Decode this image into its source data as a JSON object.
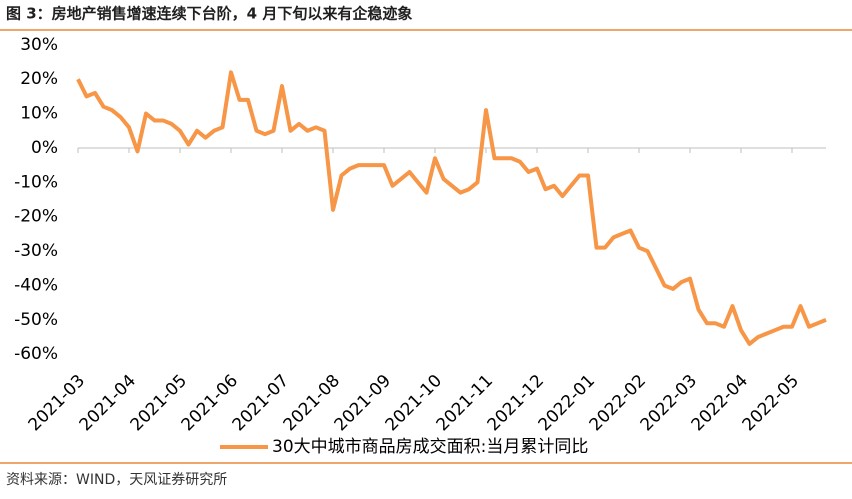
{
  "chart_data": {
    "type": "line",
    "title": "图 3：房地产销售增速连续下台阶，4 月下旬以来有企稳迹象",
    "source": "资料来源：WIND，天风证券研究所",
    "categories": [
      "2021-03",
      null,
      null,
      null,
      null,
      null,
      "2021-04",
      null,
      null,
      null,
      null,
      null,
      "2021-05",
      null,
      null,
      null,
      null,
      null,
      "2021-06",
      null,
      null,
      null,
      null,
      null,
      "2021-07",
      null,
      null,
      null,
      null,
      null,
      "2021-08",
      null,
      null,
      null,
      null,
      null,
      "2021-09",
      null,
      null,
      null,
      null,
      null,
      "2021-10",
      null,
      null,
      null,
      null,
      null,
      "2021-11",
      null,
      null,
      null,
      null,
      null,
      "2021-12",
      null,
      null,
      null,
      null,
      null,
      "2022-01",
      null,
      null,
      null,
      null,
      null,
      "2022-02",
      null,
      null,
      null,
      null,
      null,
      "2022-03",
      null,
      null,
      null,
      null,
      null,
      "2022-04",
      null,
      null,
      null,
      null,
      null,
      "2022-05",
      null,
      null,
      null,
      null
    ],
    "series": [
      {
        "name": "30大中城市商品房成交面积:当月累计同比",
        "color": "#f79646",
        "values": [
          20,
          15,
          16,
          12,
          11,
          9,
          6,
          -1,
          10,
          8,
          8,
          7,
          5,
          1,
          5,
          3,
          5,
          6,
          22,
          14,
          14,
          5,
          4,
          5,
          18,
          5,
          7,
          5,
          6,
          5,
          -18,
          -8,
          -6,
          -5,
          -5,
          -5,
          -5,
          -11,
          -9,
          -7,
          -10,
          -13,
          -3,
          -9,
          -11,
          -13,
          -12,
          -10,
          11,
          -3,
          -3,
          -3,
          -4,
          -7,
          -6,
          -12,
          -11,
          -14,
          -11,
          -8,
          -8,
          -29,
          -29,
          -26,
          -25,
          -24,
          -29,
          -30,
          -35,
          -40,
          -41,
          -39,
          -38,
          -47,
          -51,
          -51,
          -52,
          -46,
          -53,
          -57,
          -55,
          -54,
          -53,
          -52,
          -52,
          -46,
          -52,
          -51,
          -50
        ]
      }
    ],
    "ylim": [
      -64,
      33
    ],
    "yticks": [
      {
        "value": 30,
        "label": "30%"
      },
      {
        "value": 20,
        "label": "20%"
      },
      {
        "value": 10,
        "label": "10%"
      },
      {
        "value": 0,
        "label": "0%"
      },
      {
        "value": -10,
        "label": "-10%"
      },
      {
        "value": -20,
        "label": "-20%"
      },
      {
        "value": -30,
        "label": "-30%"
      },
      {
        "value": -40,
        "label": "-40%"
      },
      {
        "value": -50,
        "label": "-50%"
      },
      {
        "value": -60,
        "label": "-60%"
      }
    ],
    "grid": false,
    "legend": "bottom"
  }
}
